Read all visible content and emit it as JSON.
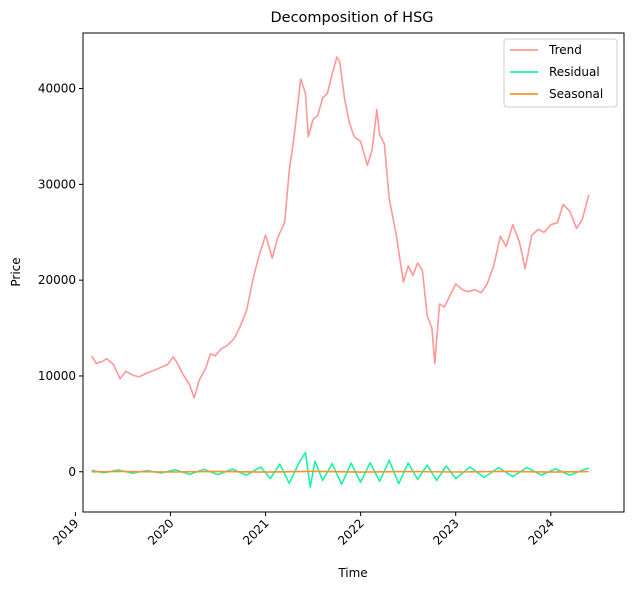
{
  "chart_data": {
    "type": "line",
    "title": "Decomposition of HSG",
    "xlabel": "Time",
    "ylabel": "Price",
    "xlim": [
      2019.08,
      2024.77
    ],
    "ylim": [
      -4200,
      45800
    ],
    "x_ticks": [
      2019,
      2020,
      2021,
      2022,
      2023,
      2024
    ],
    "x_tick_labels": [
      "2019",
      "2020",
      "2021",
      "2022",
      "2023",
      "2024"
    ],
    "y_ticks": [
      0,
      10000,
      20000,
      30000,
      40000
    ],
    "y_tick_labels": [
      "0",
      "10000",
      "20000",
      "30000",
      "40000"
    ],
    "grid": false,
    "legend_position": "top-right",
    "series": [
      {
        "name": "Trend",
        "color": "#ff9896",
        "x": [
          2019.17,
          2019.22,
          2019.28,
          2019.33,
          2019.4,
          2019.47,
          2019.53,
          2019.6,
          2019.67,
          2019.75,
          2019.83,
          2019.9,
          2019.97,
          2020.03,
          2020.08,
          2020.13,
          2020.2,
          2020.25,
          2020.3,
          2020.37,
          2020.42,
          2020.47,
          2020.53,
          2020.6,
          2020.67,
          2020.73,
          2020.8,
          2020.87,
          2020.93,
          2021.0,
          2021.07,
          2021.13,
          2021.2,
          2021.25,
          2021.3,
          2021.37,
          2021.42,
          2021.45,
          2021.5,
          2021.55,
          2021.6,
          2021.65,
          2021.7,
          2021.75,
          2021.78,
          2021.83,
          2021.88,
          2021.93,
          2022.0,
          2022.07,
          2022.12,
          2022.17,
          2022.2,
          2022.25,
          2022.3,
          2022.37,
          2022.45,
          2022.5,
          2022.55,
          2022.6,
          2022.65,
          2022.7,
          2022.75,
          2022.78,
          2022.83,
          2022.88,
          2022.93,
          2023.0,
          2023.07,
          2023.13,
          2023.2,
          2023.27,
          2023.33,
          2023.4,
          2023.47,
          2023.53,
          2023.6,
          2023.67,
          2023.73,
          2023.8,
          2023.87,
          2023.93,
          2024.0,
          2024.07,
          2024.13,
          2024.2,
          2024.27,
          2024.33,
          2024.4
        ],
        "values": [
          12100,
          11300,
          11500,
          11800,
          11200,
          9700,
          10500,
          10100,
          9900,
          10300,
          10600,
          10900,
          11200,
          12000,
          11200,
          10200,
          9100,
          7700,
          9500,
          10800,
          12300,
          12100,
          12800,
          13200,
          13900,
          15100,
          16800,
          20200,
          22500,
          24700,
          22300,
          24500,
          26000,
          31500,
          35000,
          41000,
          39500,
          35000,
          36800,
          37200,
          39000,
          39500,
          41500,
          43300,
          42800,
          39000,
          36500,
          35000,
          34500,
          32000,
          33500,
          37800,
          35200,
          34200,
          28500,
          25000,
          19800,
          21500,
          20500,
          21800,
          21000,
          16300,
          15000,
          11300,
          17500,
          17200,
          18200,
          19600,
          19000,
          18800,
          19000,
          18700,
          19600,
          21500,
          24600,
          23500,
          25800,
          24000,
          21200,
          24700,
          25300,
          25000,
          25800,
          26000,
          27900,
          27200,
          25400,
          26300,
          28900
        ]
      },
      {
        "name": "Residual",
        "color": "#17f5a0",
        "x": [
          2019.17,
          2019.3,
          2019.45,
          2019.6,
          2019.75,
          2019.9,
          2020.05,
          2020.2,
          2020.35,
          2020.5,
          2020.65,
          2020.8,
          2020.95,
          2021.05,
          2021.15,
          2021.25,
          2021.35,
          2021.42,
          2021.47,
          2021.52,
          2021.6,
          2021.7,
          2021.8,
          2021.9,
          2022.0,
          2022.1,
          2022.2,
          2022.3,
          2022.4,
          2022.5,
          2022.6,
          2022.7,
          2022.8,
          2022.9,
          2023.0,
          2023.15,
          2023.3,
          2023.45,
          2023.6,
          2023.75,
          2023.9,
          2024.05,
          2024.2,
          2024.4
        ],
        "values": [
          150,
          -120,
          180,
          -150,
          120,
          -130,
          200,
          -280,
          250,
          -300,
          280,
          -350,
          500,
          -700,
          800,
          -1200,
          900,
          2000,
          -1600,
          1100,
          -900,
          850,
          -1300,
          900,
          -1100,
          950,
          -1000,
          1200,
          -1250,
          900,
          -800,
          700,
          -900,
          600,
          -700,
          500,
          -600,
          450,
          -500,
          450,
          -350,
          300,
          -350,
          400
        ]
      },
      {
        "name": "Seasonal",
        "color": "#ff9133",
        "x": [
          2019.17,
          2019.5,
          2020.0,
          2020.5,
          2021.0,
          2021.5,
          2022.0,
          2022.5,
          2023.0,
          2023.5,
          2024.0,
          2024.4
        ],
        "values": [
          0,
          30,
          -20,
          40,
          -30,
          50,
          -40,
          30,
          -20,
          40,
          -30,
          20
        ]
      }
    ]
  }
}
